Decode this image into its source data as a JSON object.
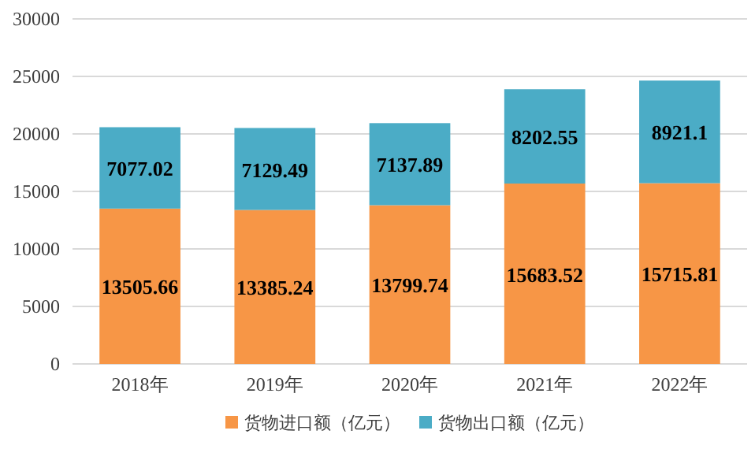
{
  "chart_data": {
    "type": "bar",
    "stacked": true,
    "categories": [
      "2018年",
      "2019年",
      "2020年",
      "2021年",
      "2022年"
    ],
    "series": [
      {
        "name": "货物进口额（亿元）",
        "color": "#f79646",
        "values": [
          13505.66,
          13385.24,
          13799.74,
          15683.52,
          15715.81
        ]
      },
      {
        "name": "货物出口额（亿元）",
        "color": "#4bacc6",
        "values": [
          7077.02,
          7129.49,
          7137.89,
          8202.55,
          8921.1
        ]
      }
    ],
    "ylim": [
      0,
      30000
    ],
    "yticks": [
      0,
      5000,
      10000,
      15000,
      20000,
      25000,
      30000
    ],
    "grid": "y",
    "legend": "bottom",
    "data_labels": true
  }
}
